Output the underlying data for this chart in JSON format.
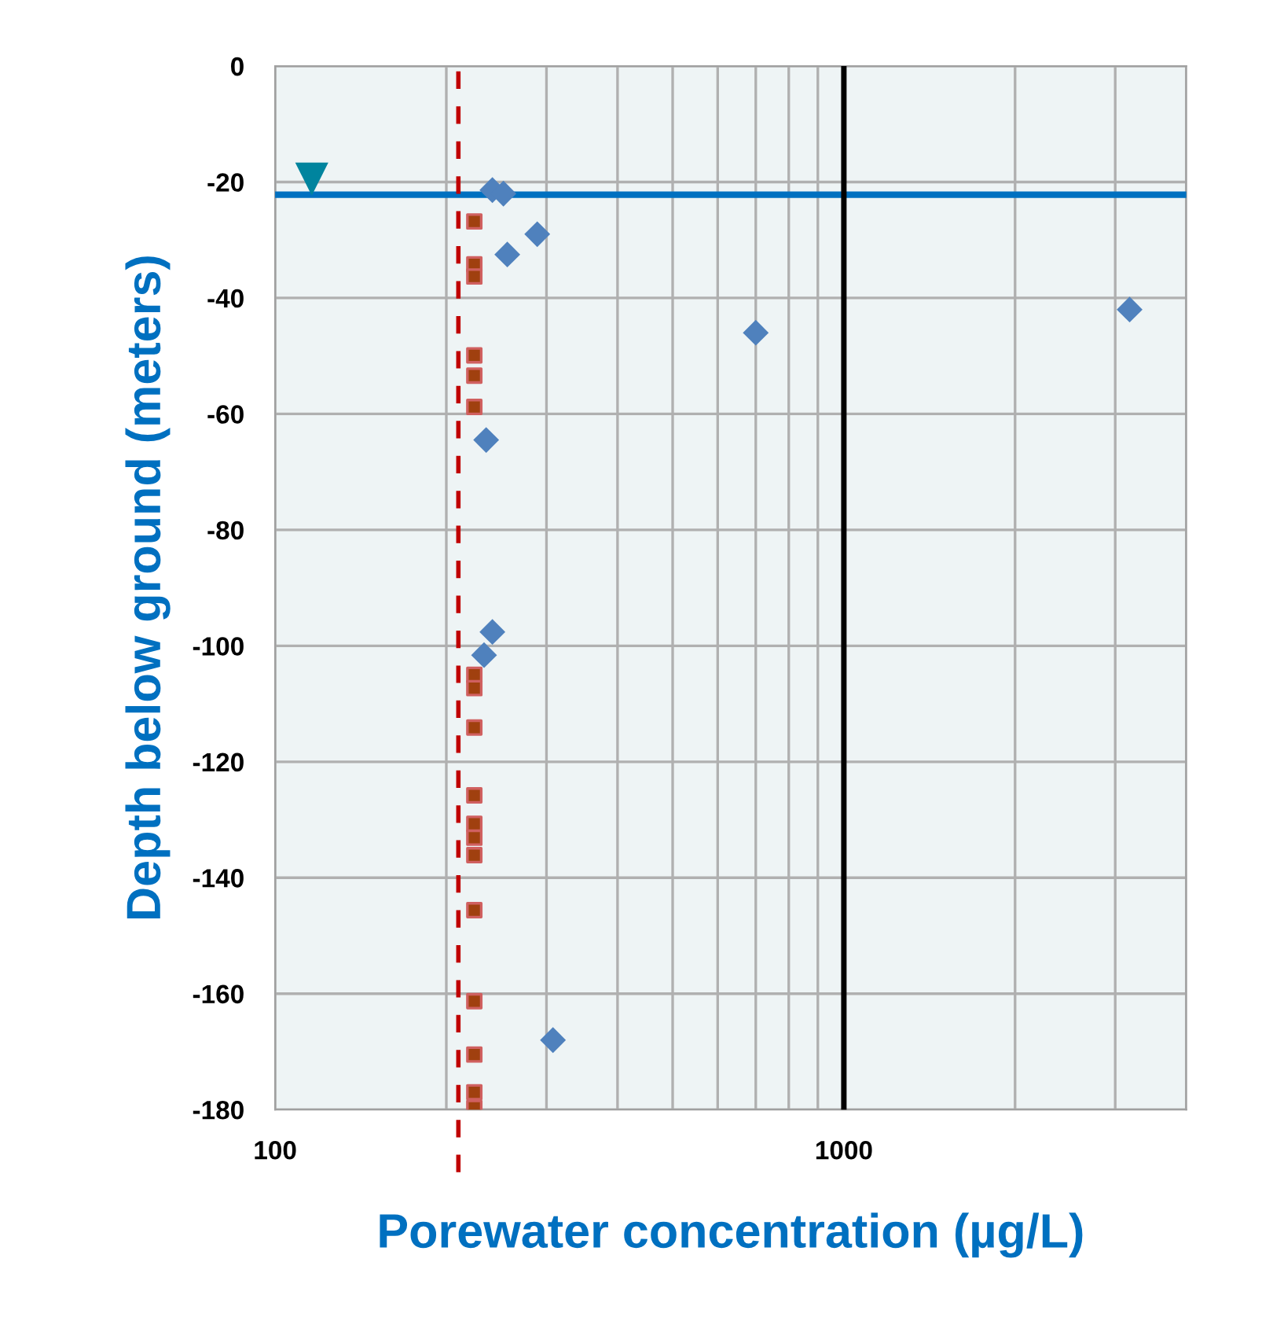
{
  "chart_data": {
    "type": "scatter",
    "xlabel": "Porewater concentration (µg/L)",
    "ylabel": "Depth below ground (meters)",
    "log": "x",
    "xlim": [
      100,
      4000
    ],
    "xticks": [
      100,
      {
        "value": 200,
        "label": null
      },
      {
        "value": 300,
        "label": null
      },
      {
        "value": 400,
        "label": null
      },
      {
        "value": 500,
        "label": null
      },
      {
        "value": 600,
        "label": null
      },
      {
        "value": 700,
        "label": null
      },
      {
        "value": 800,
        "label": null
      },
      {
        "value": 900,
        "label": null
      },
      1000,
      {
        "value": 2000,
        "label": null
      },
      {
        "value": 3000,
        "label": null
      },
      {
        "value": 4000,
        "label": null
      }
    ],
    "ylim": [
      -180,
      0
    ],
    "yticks": [
      0,
      -20,
      -40,
      -60,
      -80,
      -100,
      -120,
      -140,
      -160,
      -180
    ],
    "grid": true,
    "legend": false,
    "series": [
      {
        "color": "#4f81bd",
        "marker": "diamond",
        "x": [
          241,
          252,
          289,
          256,
          700,
          3180,
          235,
          241,
          233,
          308
        ],
        "values": [
          -21.4,
          -22,
          -29,
          -32.5,
          -46,
          -42,
          -64.5,
          -97.6,
          -101.6,
          -168
        ]
      },
      {
        "color": "#a0400f",
        "marker": "square",
        "x": [
          224,
          224,
          224,
          224,
          224,
          224,
          224,
          224,
          224,
          224,
          224,
          224,
          224,
          224,
          224,
          224,
          224,
          224
        ],
        "values": [
          -26.8,
          -34.2,
          -36.3,
          -49.9,
          -53.4,
          -58.8,
          -105,
          -107.3,
          -114.1,
          -125.8,
          -130.7,
          -133.1,
          -136.1,
          -145.6,
          -161.3,
          -170.5,
          -177,
          -179.7
        ]
      },
      {
        "color": "#00849e",
        "marker": "triangle",
        "x": [
          116
        ],
        "values": [
          -19.5
        ]
      }
    ],
    "ref_lines": [
      {
        "axis": "y",
        "value": -22.2,
        "color": "#0070c0",
        "line_style": "solid"
      },
      {
        "axis": "x",
        "value": 1000,
        "color": "#000000",
        "line_style": "solid"
      },
      {
        "axis": "x",
        "value": 210,
        "color": "#c00000",
        "line_style": "dashed"
      }
    ]
  }
}
